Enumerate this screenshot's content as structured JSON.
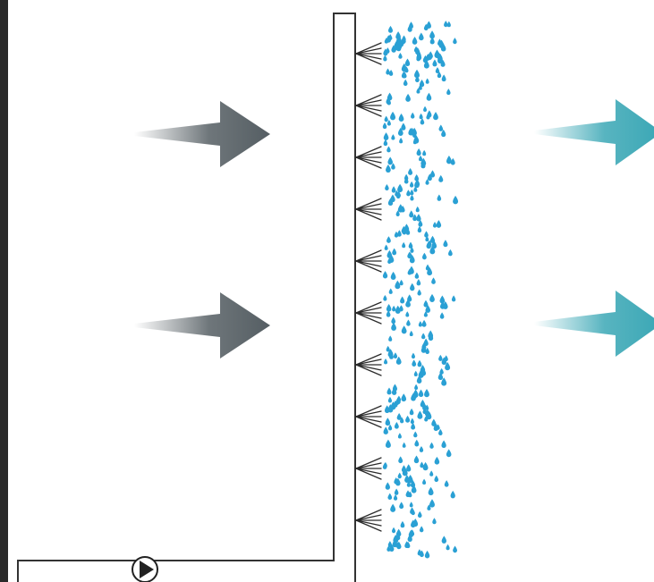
{
  "diagram": {
    "colors": {
      "background": "#ffffff",
      "wall": "#2a2a2a",
      "pipe": "#333333",
      "nozzle": "#2b2b2b",
      "droplet": "#2aa0d4",
      "inlet_arrow": "#555e63",
      "outlet_arrow": "#3aa7b5"
    },
    "icons": {
      "pump": "pump-icon",
      "nozzle": "spray-nozzle-icon",
      "droplet": "water-droplet-icon",
      "inlet_arrow": "airflow-in-arrow",
      "outlet_arrow": "airflow-out-arrow"
    },
    "nozzle_count": 10,
    "inlet_arrow_count": 2,
    "outlet_arrow_count": 2
  }
}
